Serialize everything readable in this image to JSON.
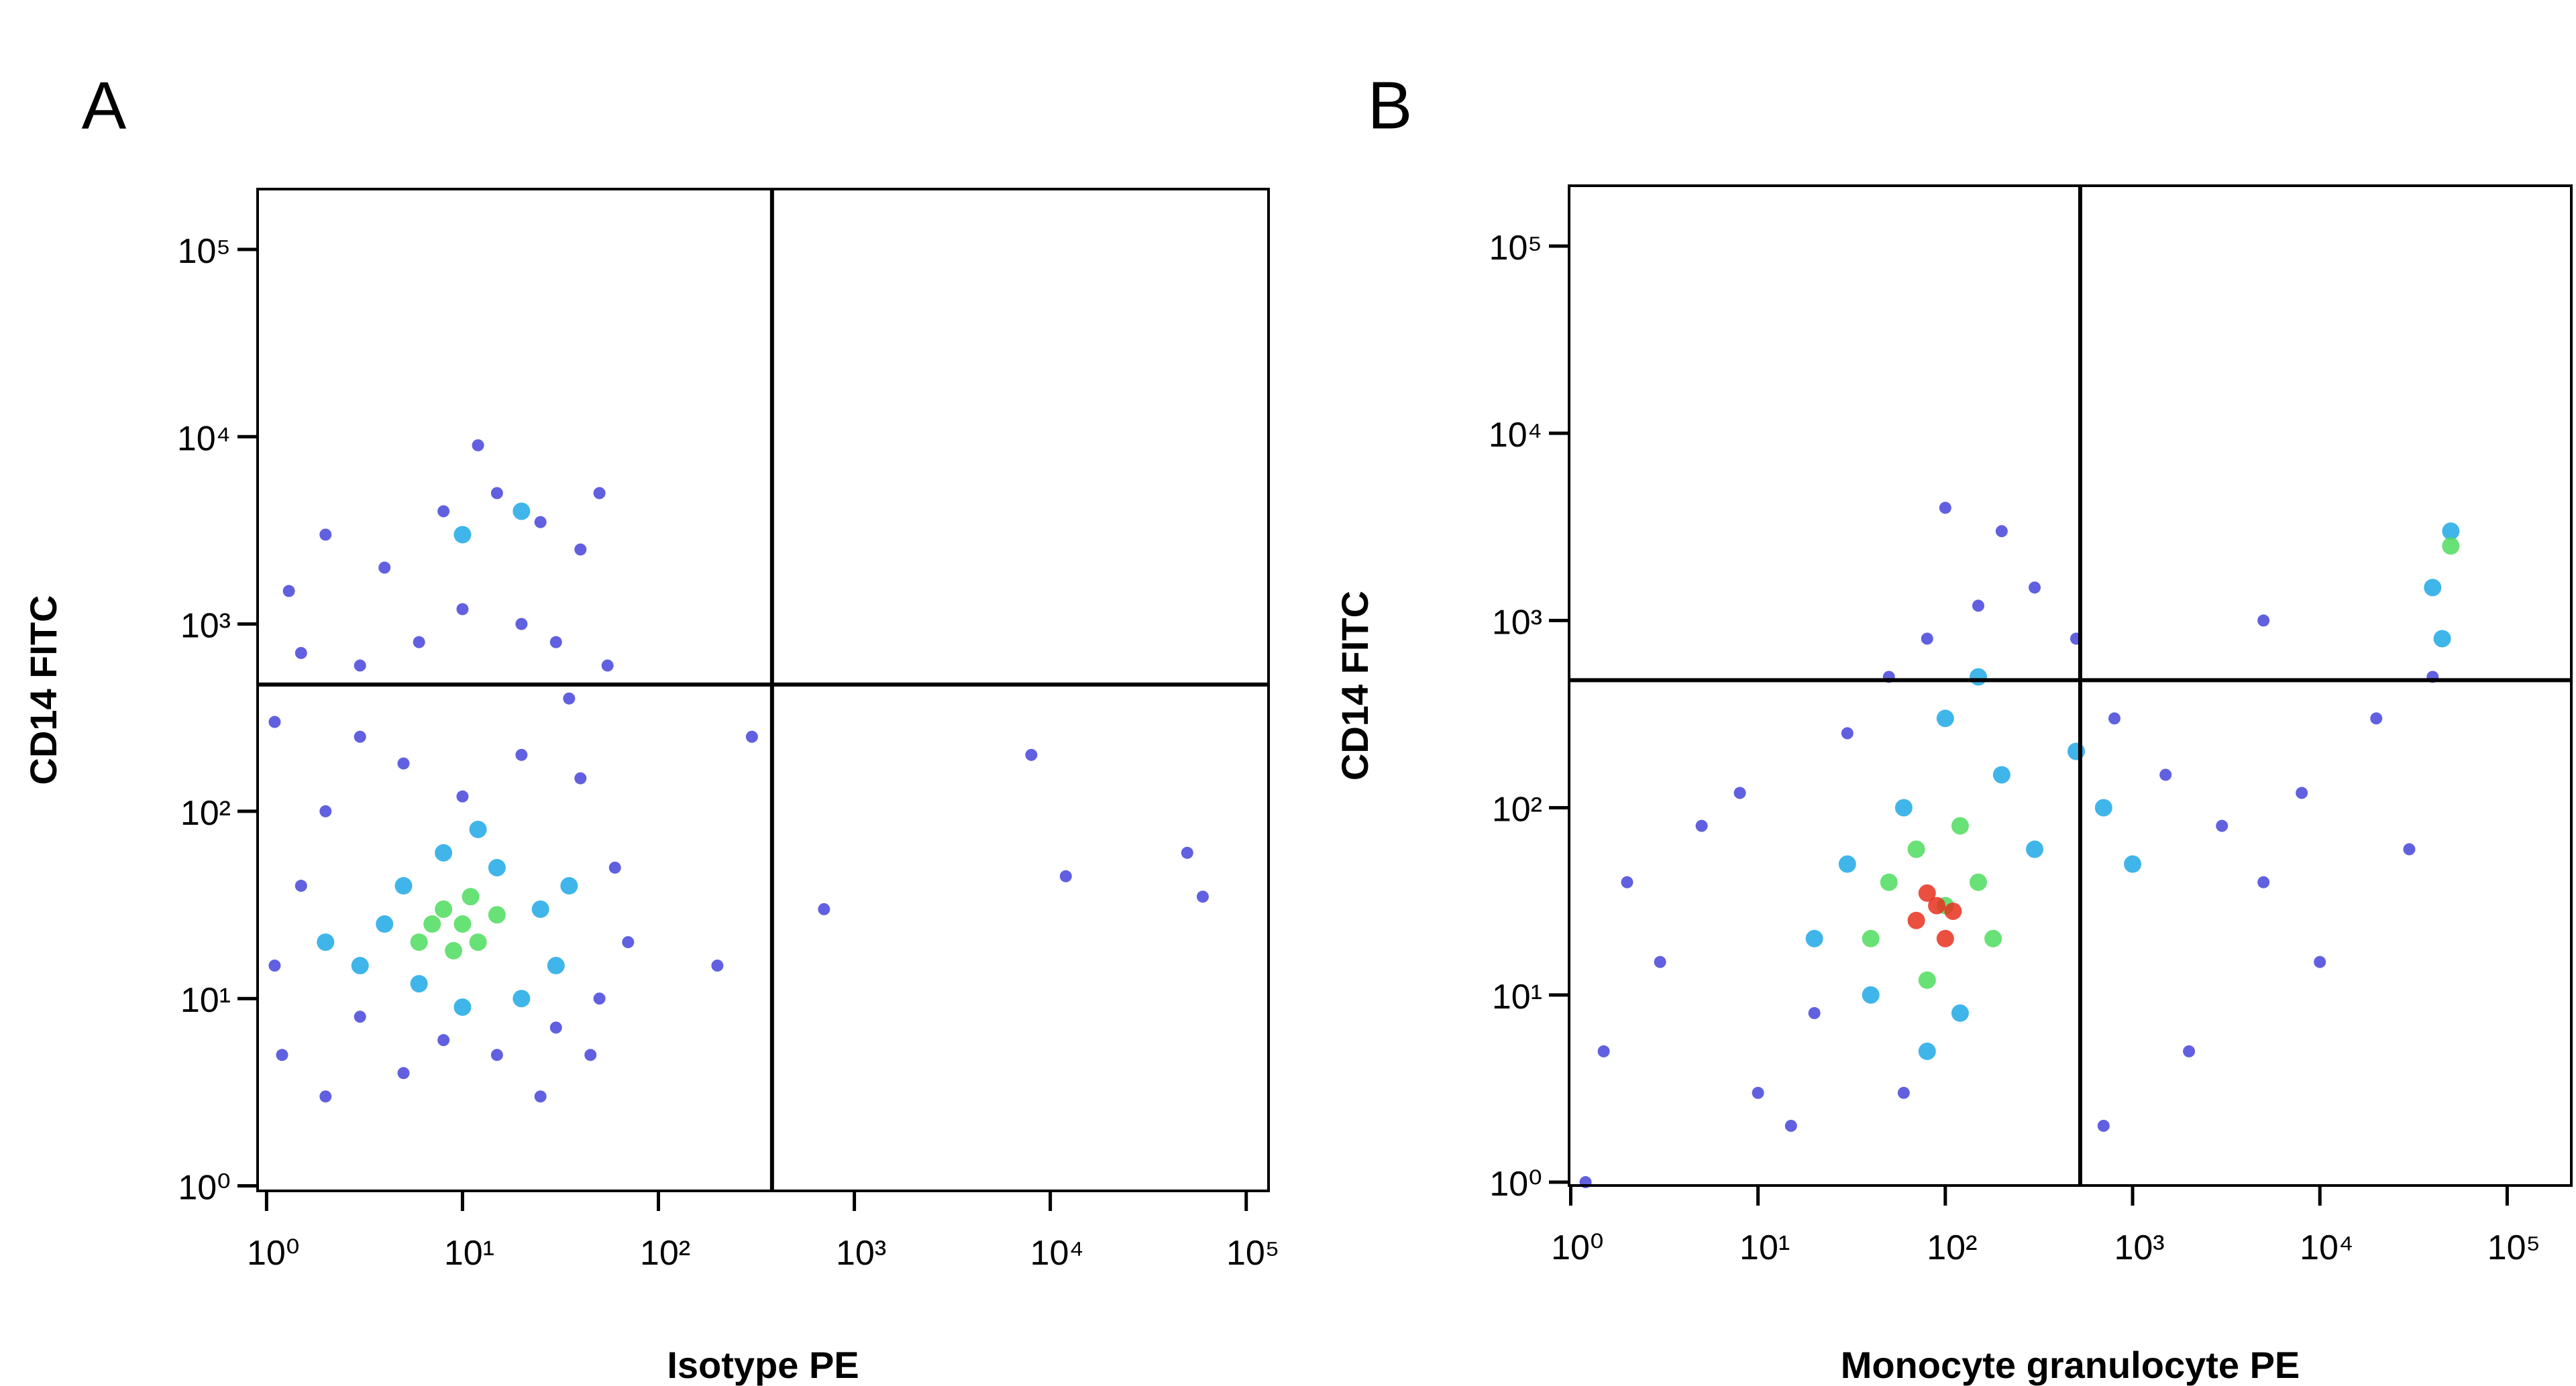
{
  "chart_data": [
    {
      "type": "scatter",
      "panel_label": "A",
      "x_label": "Isotype PE",
      "y_label": "CD14 FITC",
      "log_x": true,
      "log_y": true,
      "xlim": [
        0.9,
        130000
      ],
      "ylim": [
        0.94,
        210000
      ],
      "xticks": [
        {
          "value": 1,
          "label": "10⁰"
        },
        {
          "value": 10,
          "label": "10¹"
        },
        {
          "value": 100,
          "label": "10²"
        },
        {
          "value": 1000,
          "label": "10³"
        },
        {
          "value": 10000,
          "label": "10⁴"
        },
        {
          "value": 100000,
          "label": "10⁵"
        }
      ],
      "yticks": [
        {
          "value": 1,
          "label": "10⁰"
        },
        {
          "value": 10,
          "label": "10¹"
        },
        {
          "value": 100,
          "label": "10²"
        },
        {
          "value": 1000,
          "label": "10³"
        },
        {
          "value": 10000,
          "label": "10⁴"
        },
        {
          "value": 100000,
          "label": "10⁵"
        }
      ],
      "quadrant_x": 380,
      "quadrant_y": 475,
      "series": [
        {
          "color": "#2b2bd6",
          "x": [
            1.2,
            2,
            3,
            5,
            8,
            15,
            30,
            50,
            1.1,
            1.5,
            2,
            3,
            5,
            10,
            20,
            40,
            60,
            70,
            45,
            25,
            1.3,
            2,
            4,
            8,
            15,
            25,
            40,
            50,
            10,
            20,
            30,
            6,
            3,
            1.5,
            12,
            1.1,
            35,
            55,
            300,
            200,
            8000,
            700,
            50000,
            60000,
            12000
          ],
          "y": [
            5,
            3,
            8,
            4,
            6,
            5,
            7,
            10,
            15,
            40,
            100,
            250,
            180,
            120,
            200,
            150,
            50,
            20,
            5,
            3,
            1500,
            3000,
            2000,
            4000,
            5000,
            3500,
            2500,
            5000,
            1200,
            1000,
            800,
            800,
            600,
            700,
            9000,
            300,
            400,
            600,
            250,
            15,
            200,
            30,
            60,
            35,
            45
          ]
        },
        {
          "color": "#1fa8e6",
          "x": [
            3,
            5,
            8,
            15,
            25,
            30,
            20,
            10,
            4,
            6,
            12,
            35,
            2,
            20,
            10
          ],
          "y": [
            15,
            40,
            60,
            50,
            30,
            15,
            10,
            9,
            25,
            12,
            80,
            40,
            20,
            4000,
            3000
          ]
        },
        {
          "color": "#4ddc5e",
          "x": [
            6,
            8,
            10,
            12,
            15,
            9,
            11,
            7
          ],
          "y": [
            20,
            30,
            25,
            20,
            28,
            18,
            35,
            25
          ]
        }
      ]
    },
    {
      "type": "scatter",
      "panel_label": "B",
      "x_label": "Monocyte granulocyte PE",
      "y_label": "CD14 FITC",
      "log_x": true,
      "log_y": true,
      "xlim": [
        0.98,
        220000
      ],
      "ylim": [
        0.96,
        210000
      ],
      "xticks": [
        {
          "value": 1,
          "label": "10⁰"
        },
        {
          "value": 10,
          "label": "10¹"
        },
        {
          "value": 100,
          "label": "10²"
        },
        {
          "value": 1000,
          "label": "10³"
        },
        {
          "value": 10000,
          "label": "10⁴"
        },
        {
          "value": 100000,
          "label": "10⁵"
        }
      ],
      "yticks": [
        {
          "value": 1,
          "label": "10⁰"
        },
        {
          "value": 10,
          "label": "10¹"
        },
        {
          "value": 100,
          "label": "10²"
        },
        {
          "value": 1000,
          "label": "10³"
        },
        {
          "value": 10000,
          "label": "10⁴"
        },
        {
          "value": 100000,
          "label": "10⁵"
        }
      ],
      "quadrant_x": 525,
      "quadrant_y": 480,
      "series": [
        {
          "color": "#2b2bd6",
          "x": [
            1.5,
            2,
            3,
            5,
            8,
            10,
            15,
            20,
            30,
            50,
            80,
            150,
            200,
            300,
            500,
            800,
            1500,
            3000,
            5000,
            8000,
            20000,
            30000,
            10000,
            2000,
            700,
            1.2,
            5000,
            100,
            40000,
            60
          ],
          "y": [
            5,
            40,
            15,
            80,
            120,
            3,
            2,
            8,
            250,
            500,
            800,
            1200,
            3000,
            1500,
            800,
            300,
            150,
            80,
            40,
            120,
            300,
            60,
            15,
            5,
            2,
            1,
            1000,
            4000,
            500,
            3
          ]
        },
        {
          "color": "#1fa8e6",
          "x": [
            20,
            30,
            40,
            60,
            100,
            150,
            200,
            300,
            500,
            700,
            1000,
            120,
            80,
            40000,
            50000,
            45000
          ],
          "y": [
            20,
            50,
            10,
            100,
            300,
            500,
            150,
            60,
            200,
            100,
            50,
            8,
            5,
            1500,
            3000,
            800
          ]
        },
        {
          "color": "#4ddc5e",
          "x": [
            40,
            50,
            70,
            100,
            120,
            150,
            80,
            180,
            50000
          ],
          "y": [
            20,
            40,
            60,
            30,
            80,
            40,
            12,
            20,
            2500
          ]
        },
        {
          "color": "#e8301e",
          "x": [
            70,
            80,
            100,
            90,
            110
          ],
          "y": [
            25,
            35,
            20,
            30,
            28
          ]
        }
      ]
    }
  ]
}
